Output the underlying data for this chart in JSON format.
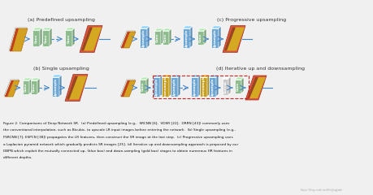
{
  "bg_color": "#f0f0f0",
  "label_a": "(a) Predefined upsampling",
  "label_b": "(b) Single upsampling",
  "label_c": "(c) Progressive upsampling",
  "label_d": "(d) Iterative up and downsampling",
  "green_color": "#8fbc8f",
  "blue_color": "#6fa8d4",
  "gold_color": "#c8a020",
  "gray_color": "#c8c8c8",
  "arrow_color": "#4488cc",
  "red_box_color": "#cc2222",
  "caption_lines": [
    "Figure 2. Comparisons of Deep Network SR.  (a) Predefined upsampling (e.g.,  SRCNN [6],  VDSR [22],  DRRN [43]) commonly uses",
    "the conventional interpolation, such as Bicubic, to upscale LR input images before entering the network.  (b) Single upsampling (e.g.,",
    "FSRCNN [7], ESPCN [38]) propagates the LR features, then construct the SR image at the last step.  (c) Progressive upsampling uses",
    "a Laplacian pyramid network which gradually predicts SR images [25]. (d) Iterative up and downsampling approach is proposed by our",
    "DBPN which exploit the mutually connected up- (blue box) and down-sampling (gold box) stages to obtain numerous HR features in",
    "different depths."
  ],
  "watermark": "https://blog.csdn.net/BeiJingJade"
}
